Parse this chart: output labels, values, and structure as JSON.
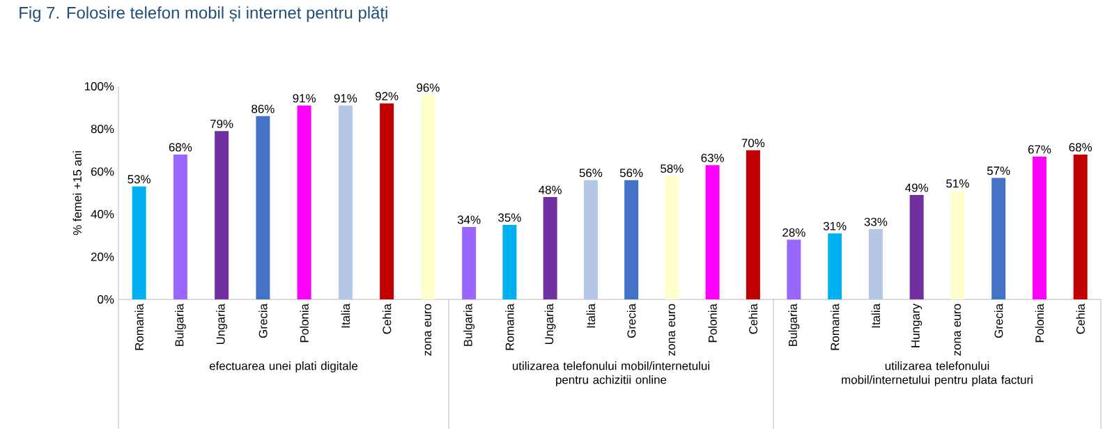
{
  "chart_data": [
    {
      "type": "bar",
      "title": "Fig 7. Folosire telefon mobil și internet pentru plăți",
      "ylabel": "% femei +15 ani",
      "xlabel": "efectuarea unei plati digitale",
      "categories": [
        "Romania",
        "Bulgaria",
        "Ungaria",
        "Grecia",
        "Polonia",
        "Italia",
        "Cehia",
        "zona euro"
      ],
      "values": [
        53,
        68,
        79,
        86,
        91,
        91,
        92,
        96
      ],
      "value_labels": [
        "53%",
        "68%",
        "79%",
        "86%",
        "91%",
        "91%",
        "92%",
        "96%"
      ],
      "colors": [
        "#00b0f0",
        "#9966ff",
        "#7030a0",
        "#4472c4",
        "#ff00ff",
        "#b4c7e7",
        "#c00000",
        "#ffffcc"
      ],
      "ylim": [
        0,
        100
      ],
      "yticks": [
        {
          "value": 0,
          "label": "0%"
        },
        {
          "value": 20,
          "label": "20%"
        },
        {
          "value": 40,
          "label": "40%"
        },
        {
          "value": 60,
          "label": "60%"
        },
        {
          "value": 80,
          "label": "80%"
        },
        {
          "value": 100,
          "label": "100%"
        }
      ]
    },
    {
      "type": "bar",
      "xlabel": "utilizarea telefonului mobil/internetului pentru achizitii online",
      "categories": [
        "Bulgaria",
        "Romania",
        "Ungaria",
        "Italia",
        "Grecia",
        "zona euro",
        "Polonia",
        "Cehia"
      ],
      "values": [
        34,
        35,
        48,
        56,
        56,
        58,
        63,
        70
      ],
      "value_labels": [
        "34%",
        "35%",
        "48%",
        "56%",
        "56%",
        "58%",
        "63%",
        "70%"
      ],
      "colors": [
        "#9966ff",
        "#00b0f0",
        "#7030a0",
        "#b4c7e7",
        "#4472c4",
        "#ffffcc",
        "#ff00ff",
        "#c00000"
      ],
      "ylim": [
        0,
        100
      ],
      "tick_labels": "x"
    },
    {
      "type": "bar",
      "xlabel": "utilizarea telefonului mobil/internetului pentru plata facturi",
      "categories": [
        "Bulgaria",
        "Romania",
        "Italia",
        "Hungary",
        "zona euro",
        "Grecia",
        "Polonia",
        "Cehia"
      ],
      "values": [
        28,
        31,
        33,
        49,
        51,
        57,
        67,
        68
      ],
      "value_labels": [
        "28%",
        "31%",
        "33%",
        "49%",
        "51%",
        "57%",
        "67%",
        "68%"
      ],
      "colors": [
        "#9966ff",
        "#00b0f0",
        "#b4c7e7",
        "#7030a0",
        "#ffffcc",
        "#4472c4",
        "#ff00ff",
        "#c00000"
      ],
      "ylim": [
        0,
        100
      ],
      "tick_labels": "x"
    }
  ]
}
